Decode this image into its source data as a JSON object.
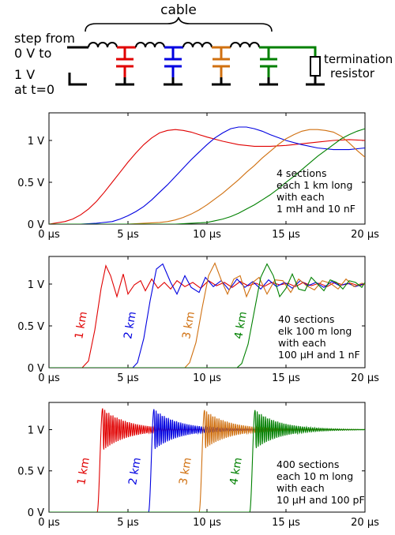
{
  "schematic": {
    "cable_label": "cable",
    "source_label_lines": [
      "step from",
      "0 V to",
      "1 V",
      "at t=0"
    ],
    "termination_label_lines": [
      "termination",
      "resistor"
    ],
    "section_colors": [
      "#e00000",
      "#0000e0",
      "#d07010",
      "#008000"
    ]
  },
  "chart_data": [
    {
      "type": "line",
      "x_unit": "µs",
      "xlim": [
        0,
        20
      ],
      "ylim": [
        0,
        1.33
      ],
      "xticks": [
        "0 µs",
        "5 µs",
        "10 µs",
        "15 µs",
        "20 µs"
      ],
      "yticks": [
        "0 V",
        "0.5 V",
        "1 V"
      ],
      "annotation_lines": [
        "4 sections",
        "each 1 km long",
        "with each",
        "1 mH and 10 nF"
      ],
      "series": [
        {
          "color": "#e00000",
          "x": [
            0,
            1,
            1.5,
            2,
            2.5,
            3,
            3.5,
            4,
            4.5,
            5,
            5.5,
            6,
            6.5,
            7,
            7.5,
            8,
            8.5,
            9,
            9.5,
            10,
            11,
            12,
            13,
            14,
            15,
            16,
            17,
            18,
            19,
            20
          ],
          "y": [
            0,
            0.03,
            0.06,
            0.11,
            0.18,
            0.27,
            0.38,
            0.5,
            0.62,
            0.74,
            0.85,
            0.95,
            1.03,
            1.09,
            1.12,
            1.13,
            1.12,
            1.1,
            1.07,
            1.04,
            0.99,
            0.95,
            0.93,
            0.93,
            0.94,
            0.96,
            0.98,
            1.0,
            1.01,
            1.0
          ]
        },
        {
          "color": "#0000e0",
          "x": [
            0,
            2,
            3,
            4,
            4.5,
            5,
            5.5,
            6,
            6.5,
            7,
            7.5,
            8,
            8.5,
            9,
            9.5,
            10,
            10.5,
            11,
            11.5,
            12,
            12.5,
            13,
            13.5,
            14,
            15,
            16,
            17,
            18,
            19,
            20
          ],
          "y": [
            0,
            0,
            0.01,
            0.03,
            0.06,
            0.1,
            0.15,
            0.21,
            0.29,
            0.38,
            0.47,
            0.57,
            0.67,
            0.77,
            0.86,
            0.95,
            1.03,
            1.09,
            1.14,
            1.16,
            1.16,
            1.14,
            1.11,
            1.07,
            1.0,
            0.95,
            0.91,
            0.89,
            0.89,
            0.91
          ]
        },
        {
          "color": "#d07010",
          "x": [
            0,
            5,
            6,
            7,
            7.5,
            8,
            8.5,
            9,
            9.5,
            10,
            10.5,
            11,
            11.5,
            12,
            12.5,
            13,
            13.5,
            14,
            14.5,
            15,
            15.5,
            16,
            16.5,
            17,
            17.5,
            18,
            18.5,
            19,
            19.5,
            20
          ],
          "y": [
            0,
            0,
            0.01,
            0.02,
            0.03,
            0.05,
            0.08,
            0.12,
            0.17,
            0.23,
            0.3,
            0.37,
            0.45,
            0.53,
            0.62,
            0.7,
            0.79,
            0.87,
            0.95,
            1.02,
            1.07,
            1.11,
            1.13,
            1.13,
            1.12,
            1.1,
            1.05,
            0.97,
            0.88,
            0.8
          ]
        },
        {
          "color": "#008000",
          "x": [
            0,
            8,
            9,
            10,
            10.5,
            11,
            11.5,
            12,
            12.5,
            13,
            13.5,
            14,
            14.5,
            15,
            15.5,
            16,
            16.5,
            17,
            17.5,
            18,
            18.5,
            19,
            19.5,
            20
          ],
          "y": [
            0,
            0,
            0.01,
            0.02,
            0.04,
            0.06,
            0.09,
            0.13,
            0.18,
            0.23,
            0.29,
            0.35,
            0.42,
            0.5,
            0.57,
            0.65,
            0.73,
            0.81,
            0.88,
            0.95,
            1.02,
            1.07,
            1.11,
            1.14
          ]
        }
      ]
    },
    {
      "type": "line",
      "x_unit": "µs",
      "xlim": [
        0,
        20
      ],
      "ylim": [
        0,
        1.33
      ],
      "xticks": [
        "0 µs",
        "5 µs",
        "10 µs",
        "15 µs",
        "20 µs"
      ],
      "yticks": [
        "0 V",
        "0.5 V",
        "1 V"
      ],
      "annotation_lines": [
        "40 sections",
        "elk 100 m long",
        "with each",
        "100 µH and 1 nF"
      ],
      "series": [
        {
          "label": "1 km",
          "color": "#e00000",
          "x": [
            0,
            2.1,
            2.5,
            2.9,
            3.3,
            3.6,
            3.9,
            4.3,
            4.7,
            5.0,
            5.4,
            5.8,
            6.1,
            6.5,
            6.9,
            7.3,
            7.7,
            8.1,
            8.6,
            9.1,
            9.6,
            10.1,
            10.6,
            11.1,
            11.6,
            12.1,
            12.6,
            13.1,
            13.6,
            14.1,
            14.6,
            15.1,
            15.6,
            16.1,
            16.6,
            17.1,
            17.6,
            18.1,
            18.6,
            19.1,
            19.6,
            20
          ],
          "y": [
            0,
            0,
            0.08,
            0.45,
            0.95,
            1.22,
            1.1,
            0.85,
            1.12,
            0.88,
            0.99,
            1.04,
            0.92,
            1.06,
            0.95,
            1.02,
            0.94,
            1.04,
            0.97,
            1.02,
            0.95,
            1.04,
            0.98,
            1.02,
            0.96,
            1.03,
            0.98,
            1.01,
            0.97,
            1.02,
            0.99,
            1.01,
            0.97,
            1.02,
            0.98,
            1.01,
            0.97,
            1.02,
            0.99,
            1.01,
            0.98,
            1.0
          ]
        },
        {
          "label": "2 km",
          "color": "#0000e0",
          "x": [
            0,
            5.3,
            5.6,
            6.0,
            6.4,
            6.8,
            7.2,
            7.7,
            8.1,
            8.6,
            9.0,
            9.5,
            9.9,
            10.4,
            10.9,
            11.4,
            11.9,
            12.4,
            12.9,
            13.4,
            13.9,
            14.4,
            14.9,
            15.4,
            15.9,
            16.4,
            16.9,
            17.4,
            17.9,
            18.4,
            18.9,
            19.4,
            20
          ],
          "y": [
            0,
            0,
            0.06,
            0.35,
            0.8,
            1.18,
            1.24,
            1.02,
            0.88,
            1.1,
            0.96,
            0.9,
            1.08,
            0.97,
            1.04,
            0.93,
            1.06,
            0.96,
            1.03,
            0.94,
            1.05,
            0.97,
            1.02,
            0.95,
            1.04,
            0.98,
            1.02,
            0.96,
            1.03,
            0.98,
            1.01,
            0.97,
            1.01
          ]
        },
        {
          "label": "3 km",
          "color": "#d07010",
          "x": [
            0,
            8.6,
            8.9,
            9.3,
            9.7,
            10.1,
            10.5,
            10.9,
            11.3,
            11.7,
            12.1,
            12.5,
            12.9,
            13.3,
            13.8,
            14.3,
            14.8,
            15.3,
            15.8,
            16.3,
            16.8,
            17.3,
            17.8,
            18.3,
            18.8,
            19.3,
            19.8,
            20
          ],
          "y": [
            0,
            0,
            0.06,
            0.3,
            0.72,
            1.1,
            1.25,
            1.05,
            0.88,
            1.06,
            1.1,
            0.85,
            1.02,
            1.08,
            0.88,
            1.05,
            1.04,
            0.9,
            1.06,
            0.98,
            0.93,
            1.04,
            1.01,
            0.94,
            1.06,
            0.97,
            1.01,
            1.0
          ]
        },
        {
          "label": "4 km",
          "color": "#008000",
          "x": [
            0,
            11.9,
            12.2,
            12.6,
            13.0,
            13.4,
            13.8,
            14.2,
            14.6,
            15.0,
            15.4,
            15.8,
            16.2,
            16.6,
            17.0,
            17.4,
            17.8,
            18.2,
            18.6,
            19.0,
            19.4,
            19.8,
            20
          ],
          "y": [
            0,
            0,
            0.05,
            0.28,
            0.68,
            1.08,
            1.24,
            1.1,
            0.85,
            0.95,
            1.12,
            0.94,
            0.92,
            1.08,
            1.0,
            0.92,
            1.05,
            1.02,
            0.94,
            1.04,
            1.02,
            0.96,
            1.02
          ]
        }
      ]
    },
    {
      "type": "line",
      "x_unit": "µs",
      "xlim": [
        0,
        20
      ],
      "ylim": [
        0,
        1.33
      ],
      "xticks": [
        "0 µs",
        "5 µs",
        "10 µs",
        "15 µs",
        "20 µs"
      ],
      "yticks": [
        "0 V",
        "0.5 V",
        "1 V"
      ],
      "annotation_lines": [
        "400 sections",
        "each 10 m long",
        "with each",
        "10 µH and 100 pF"
      ],
      "series": [
        {
          "label": "1 km",
          "color": "#e00000",
          "onset_us": 3.05,
          "peak_v": 1.26
        },
        {
          "label": "2 km",
          "color": "#0000e0",
          "onset_us": 6.3,
          "peak_v": 1.25
        },
        {
          "label": "3 km",
          "color": "#d07010",
          "onset_us": 9.5,
          "peak_v": 1.24
        },
        {
          "label": "4 km",
          "color": "#008000",
          "onset_us": 12.7,
          "peak_v": 1.24
        }
      ]
    }
  ]
}
